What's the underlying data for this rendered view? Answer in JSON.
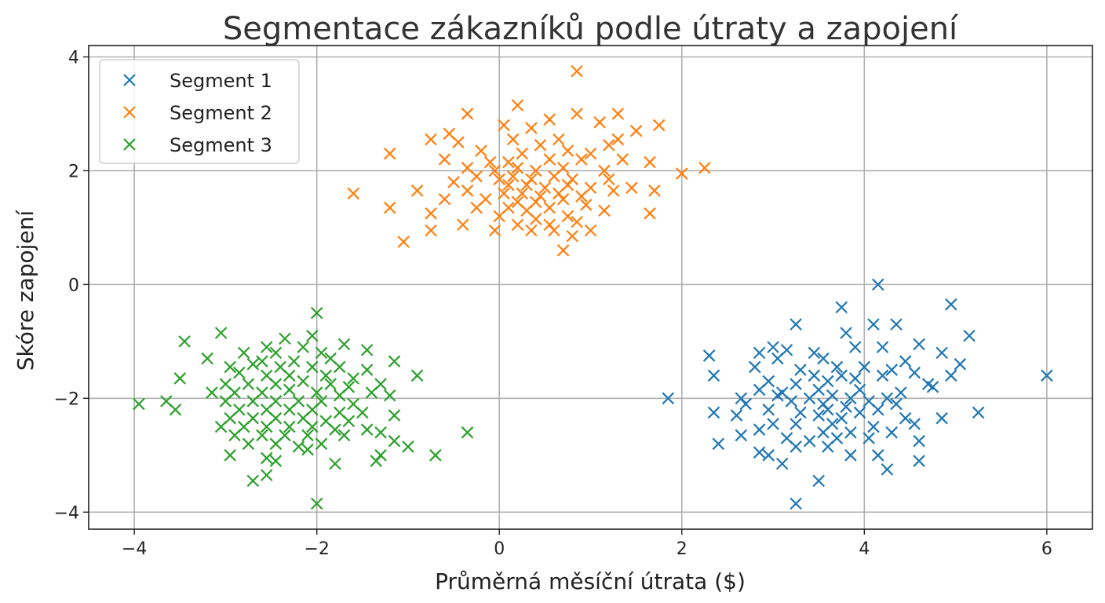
{
  "chart_data": {
    "type": "scatter",
    "title": "Segmentace zákazníků podle útraty a zapojení",
    "xlabel": "Průměrná měsíční útrata ($)",
    "ylabel": "Skóre zapojení",
    "xlim": [
      -4.5,
      6.5
    ],
    "ylim": [
      -4.3,
      4.2
    ],
    "xticks": [
      -4,
      -2,
      0,
      2,
      4,
      6
    ],
    "yticks": [
      -4,
      -2,
      0,
      2,
      4
    ],
    "xtick_labels": [
      "−4",
      "−2",
      "0",
      "2",
      "4",
      "6"
    ],
    "ytick_labels": [
      "−4",
      "−2",
      "0",
      "2",
      "4"
    ],
    "grid": true,
    "legend_position": "top-left",
    "marker": "x",
    "series": [
      {
        "name": "Segment 1",
        "color": "#1f77b4",
        "points": [
          [
            4.15,
            0.0
          ],
          [
            4.95,
            -0.35
          ],
          [
            3.75,
            -0.4
          ],
          [
            3.25,
            -0.7
          ],
          [
            4.1,
            -0.7
          ],
          [
            4.35,
            -0.7
          ],
          [
            3.8,
            -0.85
          ],
          [
            5.15,
            -0.9
          ],
          [
            3.0,
            -1.1
          ],
          [
            3.15,
            -1.15
          ],
          [
            2.85,
            -1.2
          ],
          [
            3.9,
            -1.1
          ],
          [
            4.6,
            -1.05
          ],
          [
            3.45,
            -1.2
          ],
          [
            4.2,
            -1.1
          ],
          [
            4.85,
            -1.2
          ],
          [
            2.3,
            -1.25
          ],
          [
            3.05,
            -1.3
          ],
          [
            3.55,
            -1.3
          ],
          [
            4.45,
            -1.35
          ],
          [
            5.05,
            -1.4
          ],
          [
            2.8,
            -1.45
          ],
          [
            3.3,
            -1.5
          ],
          [
            3.7,
            -1.45
          ],
          [
            4.0,
            -1.45
          ],
          [
            4.3,
            -1.5
          ],
          [
            4.55,
            -1.55
          ],
          [
            2.35,
            -1.6
          ],
          [
            3.45,
            -1.6
          ],
          [
            3.9,
            -1.65
          ],
          [
            4.2,
            -1.6
          ],
          [
            4.95,
            -1.6
          ],
          [
            6.0,
            -1.6
          ],
          [
            2.95,
            -1.7
          ],
          [
            3.25,
            -1.75
          ],
          [
            3.6,
            -1.7
          ],
          [
            3.75,
            -1.6
          ],
          [
            4.7,
            -1.75
          ],
          [
            2.85,
            -1.85
          ],
          [
            3.1,
            -1.9
          ],
          [
            3.5,
            -1.85
          ],
          [
            3.95,
            -1.85
          ],
          [
            4.4,
            -1.9
          ],
          [
            4.75,
            -1.8
          ],
          [
            2.65,
            -2.0
          ],
          [
            3.05,
            -1.95
          ],
          [
            3.4,
            -2.0
          ],
          [
            3.65,
            -1.95
          ],
          [
            3.85,
            -2.0
          ],
          [
            4.25,
            -2.0
          ],
          [
            1.85,
            -2.0
          ],
          [
            2.7,
            -2.1
          ],
          [
            3.2,
            -2.05
          ],
          [
            3.55,
            -2.1
          ],
          [
            3.8,
            -2.15
          ],
          [
            4.05,
            -2.05
          ],
          [
            4.35,
            -2.1
          ],
          [
            2.35,
            -2.25
          ],
          [
            2.95,
            -2.2
          ],
          [
            3.3,
            -2.25
          ],
          [
            3.6,
            -2.2
          ],
          [
            3.95,
            -2.25
          ],
          [
            4.15,
            -2.2
          ],
          [
            5.25,
            -2.25
          ],
          [
            2.6,
            -2.3
          ],
          [
            3.5,
            -2.3
          ],
          [
            3.75,
            -2.35
          ],
          [
            4.45,
            -2.35
          ],
          [
            3.0,
            -2.45
          ],
          [
            3.25,
            -2.45
          ],
          [
            3.65,
            -2.45
          ],
          [
            4.1,
            -2.5
          ],
          [
            4.55,
            -2.45
          ],
          [
            4.85,
            -2.35
          ],
          [
            2.85,
            -2.55
          ],
          [
            3.55,
            -2.6
          ],
          [
            3.85,
            -2.6
          ],
          [
            4.3,
            -2.6
          ],
          [
            2.65,
            -2.65
          ],
          [
            3.15,
            -2.7
          ],
          [
            3.7,
            -2.7
          ],
          [
            4.05,
            -2.7
          ],
          [
            4.6,
            -2.75
          ],
          [
            2.4,
            -2.8
          ],
          [
            3.25,
            -2.85
          ],
          [
            3.6,
            -2.85
          ],
          [
            3.4,
            -2.75
          ],
          [
            2.85,
            -2.95
          ],
          [
            2.95,
            -3.0
          ],
          [
            3.85,
            -3.0
          ],
          [
            4.15,
            -3.0
          ],
          [
            4.6,
            -3.1
          ],
          [
            3.1,
            -3.15
          ],
          [
            4.25,
            -3.25
          ],
          [
            3.5,
            -3.45
          ],
          [
            3.25,
            -3.85
          ]
        ]
      },
      {
        "name": "Segment 2",
        "color": "#ff7f0e",
        "points": [
          [
            0.85,
            3.75
          ],
          [
            0.2,
            3.15
          ],
          [
            -0.35,
            3.0
          ],
          [
            1.3,
            3.0
          ],
          [
            0.85,
            3.0
          ],
          [
            0.55,
            2.9
          ],
          [
            0.05,
            2.8
          ],
          [
            1.75,
            2.8
          ],
          [
            -0.55,
            2.65
          ],
          [
            0.35,
            2.75
          ],
          [
            1.1,
            2.85
          ],
          [
            -0.75,
            2.55
          ],
          [
            -0.45,
            2.5
          ],
          [
            0.15,
            2.55
          ],
          [
            0.65,
            2.55
          ],
          [
            1.5,
            2.7
          ],
          [
            1.2,
            2.45
          ],
          [
            0.45,
            2.45
          ],
          [
            -1.2,
            2.3
          ],
          [
            -0.2,
            2.35
          ],
          [
            0.25,
            2.3
          ],
          [
            0.75,
            2.35
          ],
          [
            1.0,
            2.3
          ],
          [
            1.3,
            2.55
          ],
          [
            -0.6,
            2.2
          ],
          [
            -0.1,
            2.15
          ],
          [
            0.1,
            2.15
          ],
          [
            0.55,
            2.2
          ],
          [
            0.9,
            2.2
          ],
          [
            1.35,
            2.2
          ],
          [
            1.65,
            2.15
          ],
          [
            2.25,
            2.05
          ],
          [
            -0.35,
            2.05
          ],
          [
            -0.05,
            2.0
          ],
          [
            0.2,
            2.05
          ],
          [
            0.4,
            2.0
          ],
          [
            0.7,
            2.05
          ],
          [
            1.15,
            2.0
          ],
          [
            2.0,
            1.95
          ],
          [
            -0.25,
            1.9
          ],
          [
            0.0,
            1.85
          ],
          [
            0.15,
            1.9
          ],
          [
            0.35,
            1.85
          ],
          [
            0.6,
            1.9
          ],
          [
            0.8,
            1.85
          ],
          [
            1.2,
            1.85
          ],
          [
            -0.5,
            1.8
          ],
          [
            0.1,
            1.75
          ],
          [
            0.3,
            1.75
          ],
          [
            0.5,
            1.7
          ],
          [
            0.75,
            1.75
          ],
          [
            1.0,
            1.7
          ],
          [
            1.45,
            1.7
          ],
          [
            -1.6,
            1.6
          ],
          [
            -0.9,
            1.65
          ],
          [
            -0.35,
            1.65
          ],
          [
            0.05,
            1.6
          ],
          [
            0.25,
            1.6
          ],
          [
            0.45,
            1.55
          ],
          [
            0.65,
            1.6
          ],
          [
            0.9,
            1.55
          ],
          [
            1.7,
            1.65
          ],
          [
            1.25,
            1.65
          ],
          [
            -0.6,
            1.5
          ],
          [
            -0.15,
            1.5
          ],
          [
            0.2,
            1.45
          ],
          [
            0.4,
            1.45
          ],
          [
            0.7,
            1.5
          ],
          [
            0.95,
            1.4
          ],
          [
            -1.2,
            1.35
          ],
          [
            -0.25,
            1.35
          ],
          [
            0.1,
            1.35
          ],
          [
            0.3,
            1.3
          ],
          [
            0.55,
            1.35
          ],
          [
            1.15,
            1.3
          ],
          [
            -0.75,
            1.25
          ],
          [
            0.0,
            1.2
          ],
          [
            0.4,
            1.15
          ],
          [
            0.75,
            1.2
          ],
          [
            1.65,
            1.25
          ],
          [
            -0.4,
            1.05
          ],
          [
            0.2,
            1.05
          ],
          [
            0.55,
            1.05
          ],
          [
            0.85,
            1.1
          ],
          [
            -0.75,
            0.95
          ],
          [
            -0.05,
            0.95
          ],
          [
            0.35,
            0.95
          ],
          [
            1.0,
            0.95
          ],
          [
            0.6,
            0.95
          ],
          [
            0.8,
            0.85
          ],
          [
            -1.05,
            0.75
          ],
          [
            0.7,
            0.6
          ]
        ]
      },
      {
        "name": "Segment 3",
        "color": "#2ca02c",
        "points": [
          [
            -2.0,
            -0.5
          ],
          [
            -3.05,
            -0.85
          ],
          [
            -2.05,
            -0.9
          ],
          [
            -3.45,
            -1.0
          ],
          [
            -2.35,
            -0.95
          ],
          [
            -2.55,
            -1.1
          ],
          [
            -1.7,
            -1.05
          ],
          [
            -2.15,
            -1.1
          ],
          [
            -1.45,
            -1.15
          ],
          [
            -2.8,
            -1.2
          ],
          [
            -2.45,
            -1.2
          ],
          [
            -1.95,
            -1.2
          ],
          [
            -3.2,
            -1.3
          ],
          [
            -2.6,
            -1.35
          ],
          [
            -2.25,
            -1.35
          ],
          [
            -1.85,
            -1.3
          ],
          [
            -1.15,
            -1.35
          ],
          [
            -2.95,
            -1.45
          ],
          [
            -2.7,
            -1.4
          ],
          [
            -2.4,
            -1.45
          ],
          [
            -2.05,
            -1.45
          ],
          [
            -1.75,
            -1.45
          ],
          [
            -1.45,
            -1.5
          ],
          [
            -3.5,
            -1.65
          ],
          [
            -2.85,
            -1.55
          ],
          [
            -2.55,
            -1.6
          ],
          [
            -2.3,
            -1.6
          ],
          [
            -1.9,
            -1.6
          ],
          [
            -1.6,
            -1.65
          ],
          [
            -0.9,
            -1.6
          ],
          [
            -3.0,
            -1.75
          ],
          [
            -2.75,
            -1.75
          ],
          [
            -2.45,
            -1.75
          ],
          [
            -2.15,
            -1.7
          ],
          [
            -1.85,
            -1.75
          ],
          [
            -1.65,
            -1.8
          ],
          [
            -1.3,
            -1.75
          ],
          [
            -3.15,
            -1.9
          ],
          [
            -2.9,
            -1.9
          ],
          [
            -2.6,
            -1.9
          ],
          [
            -2.3,
            -1.85
          ],
          [
            -2.0,
            -1.9
          ],
          [
            -1.75,
            -1.95
          ],
          [
            -1.4,
            -1.9
          ],
          [
            -1.2,
            -1.95
          ],
          [
            -3.0,
            -2.05
          ],
          [
            -2.7,
            -2.05
          ],
          [
            -2.45,
            -2.05
          ],
          [
            -2.2,
            -2.05
          ],
          [
            -1.95,
            -2.05
          ],
          [
            -1.6,
            -2.1
          ],
          [
            -3.65,
            -2.05
          ],
          [
            -3.95,
            -2.1
          ],
          [
            -2.85,
            -2.2
          ],
          [
            -2.55,
            -2.2
          ],
          [
            -2.3,
            -2.2
          ],
          [
            -2.05,
            -2.2
          ],
          [
            -1.75,
            -2.25
          ],
          [
            -1.5,
            -2.25
          ],
          [
            -1.15,
            -2.3
          ],
          [
            -3.55,
            -2.2
          ],
          [
            -2.95,
            -2.35
          ],
          [
            -2.7,
            -2.35
          ],
          [
            -2.45,
            -2.35
          ],
          [
            -2.15,
            -2.35
          ],
          [
            -1.9,
            -2.4
          ],
          [
            -1.65,
            -2.4
          ],
          [
            -3.05,
            -2.5
          ],
          [
            -2.8,
            -2.5
          ],
          [
            -2.55,
            -2.5
          ],
          [
            -2.3,
            -2.5
          ],
          [
            -2.05,
            -2.5
          ],
          [
            -1.8,
            -2.55
          ],
          [
            -1.45,
            -2.55
          ],
          [
            -2.9,
            -2.65
          ],
          [
            -2.6,
            -2.65
          ],
          [
            -2.35,
            -2.65
          ],
          [
            -2.1,
            -2.65
          ],
          [
            -1.7,
            -2.65
          ],
          [
            -1.3,
            -2.6
          ],
          [
            -0.35,
            -2.6
          ],
          [
            -2.75,
            -2.8
          ],
          [
            -2.45,
            -2.8
          ],
          [
            -2.2,
            -2.85
          ],
          [
            -1.95,
            -2.8
          ],
          [
            -1.15,
            -2.75
          ],
          [
            -2.95,
            -3.0
          ],
          [
            -2.55,
            -3.05
          ],
          [
            -2.1,
            -2.9
          ],
          [
            -1.3,
            -3.0
          ],
          [
            -1.0,
            -2.85
          ],
          [
            -0.7,
            -3.0
          ],
          [
            -2.45,
            -3.1
          ],
          [
            -1.8,
            -3.15
          ],
          [
            -1.35,
            -3.1
          ],
          [
            -2.7,
            -3.45
          ],
          [
            -2.55,
            -3.35
          ],
          [
            -2.0,
            -3.85
          ]
        ]
      }
    ]
  }
}
